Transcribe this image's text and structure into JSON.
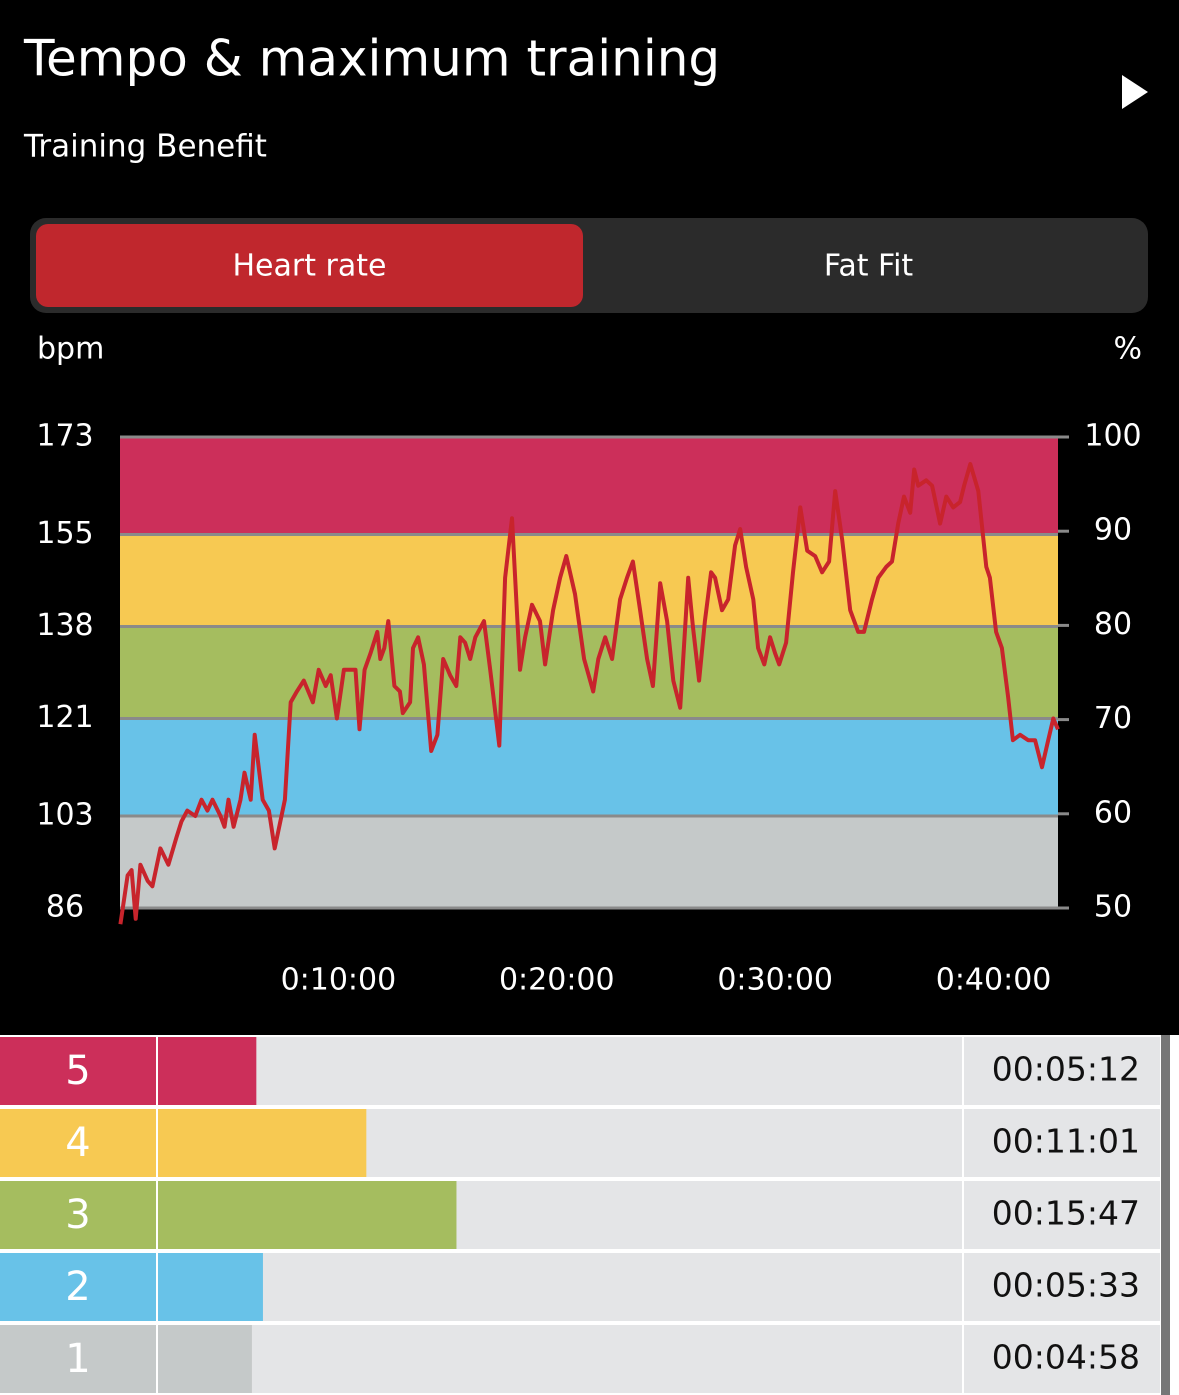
{
  "header": {
    "title": "Tempo & maximum training",
    "subtitle": "Training Benefit"
  },
  "tabs": [
    {
      "label": "Heart rate",
      "active": true
    },
    {
      "label": "Fat Fit",
      "active": false
    }
  ],
  "chart_data": [
    {
      "type": "line",
      "y_label": "bpm",
      "y2_label": "%",
      "color": "#c8242c",
      "zone_colors": [
        "#c5c9c9",
        "#68c2e8",
        "#a5bd5f",
        "#f7c952",
        "#cc2f5a"
      ],
      "xlim": [
        0,
        2577
      ],
      "xticks": [
        {
          "value": 600,
          "label": "0:10:00"
        },
        {
          "value": 1200,
          "label": "0:20:00"
        },
        {
          "value": 1800,
          "label": "0:30:00"
        },
        {
          "value": 2400,
          "label": "0:40:00"
        }
      ],
      "ylim": [
        86,
        173
      ],
      "yticks": [
        86,
        103,
        121,
        138,
        155,
        173
      ],
      "y2lim": [
        50,
        100
      ],
      "y2ticks": [
        50,
        60,
        70,
        80,
        90,
        100
      ],
      "x": [
        1,
        21,
        32,
        43,
        56,
        76,
        89,
        111,
        133,
        155,
        169,
        185,
        207,
        224,
        240,
        254,
        276,
        287,
        298,
        312,
        331,
        342,
        359,
        370,
        392,
        409,
        425,
        453,
        469,
        486,
        505,
        530,
        546,
        565,
        579,
        596,
        615,
        633,
        647,
        658,
        672,
        688,
        707,
        715,
        726,
        737,
        754,
        769,
        777,
        797,
        805,
        819,
        835,
        855,
        872,
        888,
        907,
        924,
        935,
        948,
        962,
        976,
        1000,
        1017,
        1042,
        1058,
        1077,
        1099,
        1113,
        1132,
        1154,
        1168,
        1190,
        1209,
        1226,
        1250,
        1275,
        1300,
        1314,
        1333,
        1352,
        1374,
        1393,
        1409,
        1429,
        1448,
        1464,
        1484,
        1503,
        1520,
        1539,
        1561,
        1574,
        1591,
        1607,
        1624,
        1635,
        1654,
        1671,
        1690,
        1704,
        1720,
        1740,
        1753,
        1770,
        1786,
        1800,
        1811,
        1830,
        1849,
        1869,
        1888,
        1910,
        1929,
        1948,
        1965,
        1984,
        2006,
        2028,
        2044,
        2066,
        2083,
        2105,
        2121,
        2138,
        2154,
        2171,
        2182,
        2193,
        2215,
        2231,
        2253,
        2270,
        2289,
        2308,
        2319,
        2336,
        2358,
        2380,
        2390,
        2407,
        2423,
        2440,
        2453,
        2473,
        2495,
        2514,
        2533,
        2550,
        2564,
        2577
      ],
      "values": [
        83,
        92,
        93,
        84,
        94,
        91,
        90,
        97,
        94,
        99,
        102,
        104,
        103,
        106,
        104,
        106,
        103,
        101,
        106,
        101,
        106,
        111,
        106,
        118,
        106,
        104,
        97,
        106,
        124,
        126,
        128,
        124,
        130,
        127,
        129,
        121,
        130,
        130,
        130,
        119,
        130,
        133,
        137,
        132,
        134,
        139,
        127,
        126,
        122,
        124,
        134,
        136,
        131,
        115,
        118,
        132,
        129,
        127,
        136,
        135,
        132,
        136,
        139,
        130,
        116,
        147,
        158,
        130,
        136,
        142,
        139,
        131,
        141,
        147,
        151,
        144,
        132,
        126,
        132,
        136,
        132,
        143,
        147,
        150,
        141,
        132,
        127,
        146,
        139,
        128,
        123,
        147,
        138,
        128,
        139,
        148,
        147,
        141,
        143,
        153,
        156,
        149,
        143,
        134,
        131,
        136,
        133,
        131,
        135,
        148,
        160,
        152,
        151,
        148,
        150,
        163,
        154,
        141,
        137,
        137,
        143,
        147,
        149,
        150,
        157,
        162,
        159,
        167,
        164,
        165,
        164,
        157,
        162,
        160,
        161,
        164,
        168,
        163,
        149,
        147,
        137,
        134,
        125,
        117,
        118,
        117,
        117,
        112,
        117,
        121,
        119
      ]
    },
    {
      "type": "bar",
      "categories": [
        "5",
        "4",
        "3",
        "2",
        "1"
      ],
      "values": [
        312,
        661,
        947,
        333,
        298
      ],
      "value_labels": [
        "00:05:12",
        "00:11:01",
        "00:15:47",
        "00:05:33",
        "00:04:58"
      ],
      "colors": [
        "#cc2f5a",
        "#f7c952",
        "#a5bd5f",
        "#68c2e8",
        "#c5c9c9"
      ]
    }
  ]
}
